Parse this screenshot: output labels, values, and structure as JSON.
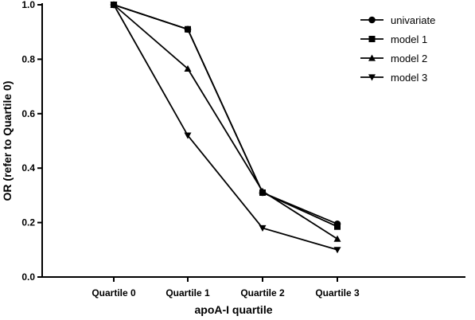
{
  "chart_data": {
    "type": "line",
    "xlabel": "apoA-I quartile",
    "ylabel": "OR (refer to Quartile 0)",
    "categories": [
      "Quartile 0",
      "Quartile 1",
      "Quartile 2",
      "Quartile 3"
    ],
    "ylim": [
      0,
      1.0
    ],
    "yticks": [
      "0.0",
      "0.2",
      "0.4",
      "0.6",
      "0.8",
      "1.0"
    ],
    "grid": false,
    "legend_position": "top-right",
    "series": [
      {
        "name": "univariate",
        "marker": "circle",
        "values": [
          1.0,
          0.91,
          0.31,
          0.195
        ]
      },
      {
        "name": "model 1",
        "marker": "square",
        "values": [
          1.0,
          0.91,
          0.31,
          0.185
        ]
      },
      {
        "name": "model 2",
        "marker": "triangle-up",
        "values": [
          1.0,
          0.765,
          0.315,
          0.14
        ]
      },
      {
        "name": "model 3",
        "marker": "triangle-down",
        "values": [
          1.0,
          0.52,
          0.18,
          0.1
        ]
      }
    ]
  }
}
